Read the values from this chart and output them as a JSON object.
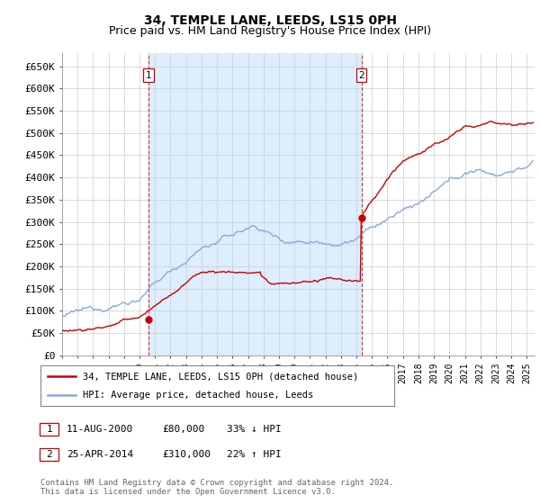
{
  "title": "34, TEMPLE LANE, LEEDS, LS15 0PH",
  "subtitle": "Price paid vs. HM Land Registry's House Price Index (HPI)",
  "ylabel_ticks": [
    "£0",
    "£50K",
    "£100K",
    "£150K",
    "£200K",
    "£250K",
    "£300K",
    "£350K",
    "£400K",
    "£450K",
    "£500K",
    "£550K",
    "£600K",
    "£650K"
  ],
  "ytick_values": [
    0,
    50000,
    100000,
    150000,
    200000,
    250000,
    300000,
    350000,
    400000,
    450000,
    500000,
    550000,
    600000,
    650000
  ],
  "xlim_start": 1995.0,
  "xlim_end": 2025.5,
  "ylim": [
    0,
    680000
  ],
  "sale1_x": 2000.6,
  "sale1_y": 80000,
  "sale2_x": 2014.32,
  "sale2_y": 310000,
  "sale_color": "#cc0000",
  "hpi_color": "#88aadd",
  "fill_color": "#ddeeff",
  "grid_color": "#cccccc",
  "background_color": "#ffffff",
  "legend_line1": "34, TEMPLE LANE, LEEDS, LS15 0PH (detached house)",
  "legend_line2": "HPI: Average price, detached house, Leeds",
  "table_row1": [
    "1",
    "11-AUG-2000",
    "£80,000",
    "33% ↓ HPI"
  ],
  "table_row2": [
    "2",
    "25-APR-2014",
    "£310,000",
    "22% ↑ HPI"
  ],
  "footer": "Contains HM Land Registry data © Crown copyright and database right 2024.\nThis data is licensed under the Open Government Licence v3.0.",
  "title_fontsize": 10,
  "subtitle_fontsize": 9,
  "tick_fontsize": 8,
  "vline_color": "#cc0000"
}
